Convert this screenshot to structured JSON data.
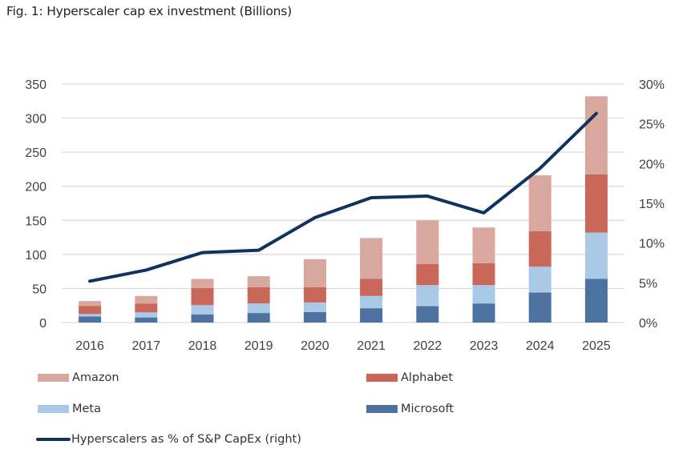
{
  "chart_data": {
    "type": "bar",
    "subtype": "stacked-bar-with-line",
    "title": "Fig. 1: Hyperscaler cap ex investment (Billions)",
    "xlabel": "",
    "ylabel": "",
    "y2label": "",
    "categories": [
      "2016",
      "2017",
      "2018",
      "2019",
      "2020",
      "2021",
      "2022",
      "2023",
      "2024",
      "2025"
    ],
    "ylim": [
      0,
      350
    ],
    "y_ticks": [
      0,
      50,
      100,
      150,
      200,
      250,
      300,
      350
    ],
    "y_tick_labels": [
      "0",
      "50",
      "100",
      "150",
      "200",
      "250",
      "300",
      "350"
    ],
    "y2lim": [
      0,
      30
    ],
    "y2_ticks": [
      0,
      5,
      10,
      15,
      20,
      25,
      30
    ],
    "y2_tick_labels": [
      "0%",
      "5%",
      "10%",
      "15%",
      "20%",
      "25%",
      "30%"
    ],
    "grid": true,
    "legend_position": "bottom",
    "stack_order": [
      "Microsoft",
      "Meta",
      "Alphabet",
      "Amazon"
    ],
    "series": [
      {
        "name": "Amazon",
        "type": "bar",
        "axis": "left",
        "color": "#d8a79e",
        "values": [
          7,
          11,
          13.5,
          16,
          41,
          60,
          64,
          52.5,
          82,
          114.5
        ]
      },
      {
        "name": "Alphabet",
        "type": "bar",
        "axis": "left",
        "color": "#c9675a",
        "values": [
          12,
          13,
          25,
          24,
          22.5,
          25,
          31,
          32,
          52,
          85.5
        ]
      },
      {
        "name": "Meta",
        "type": "bar",
        "axis": "left",
        "color": "#a9c9e6",
        "values": [
          3.5,
          7.5,
          13.5,
          14,
          14,
          18,
          31,
          27,
          38,
          68
        ]
      },
      {
        "name": "Microsoft",
        "type": "bar",
        "axis": "left",
        "color": "#4e72a0",
        "values": [
          9,
          7.5,
          12,
          14,
          15.5,
          21,
          24,
          28,
          44,
          64
        ]
      },
      {
        "name": "Hyperscalers as % of S&P CapEx (right)",
        "type": "line",
        "axis": "right",
        "color": "#10325e",
        "unit": "%",
        "values": [
          5.2,
          6.6,
          8.8,
          9.1,
          13.2,
          15.7,
          15.9,
          13.8,
          19.4,
          26.3
        ]
      }
    ]
  },
  "legend": [
    {
      "label": "Amazon",
      "kind": "bar",
      "color": "#d8a79e"
    },
    {
      "label": "Alphabet",
      "kind": "bar",
      "color": "#c9675a"
    },
    {
      "label": "Meta",
      "kind": "bar",
      "color": "#a9c9e6"
    },
    {
      "label": "Microsoft",
      "kind": "bar",
      "color": "#4e72a0"
    },
    {
      "label": "Hyperscalers as % of S&P CapEx (right)",
      "kind": "line",
      "color": "#10325e"
    }
  ],
  "colors": {
    "grid": "#d9d9d9",
    "axis_text": "#404040"
  }
}
